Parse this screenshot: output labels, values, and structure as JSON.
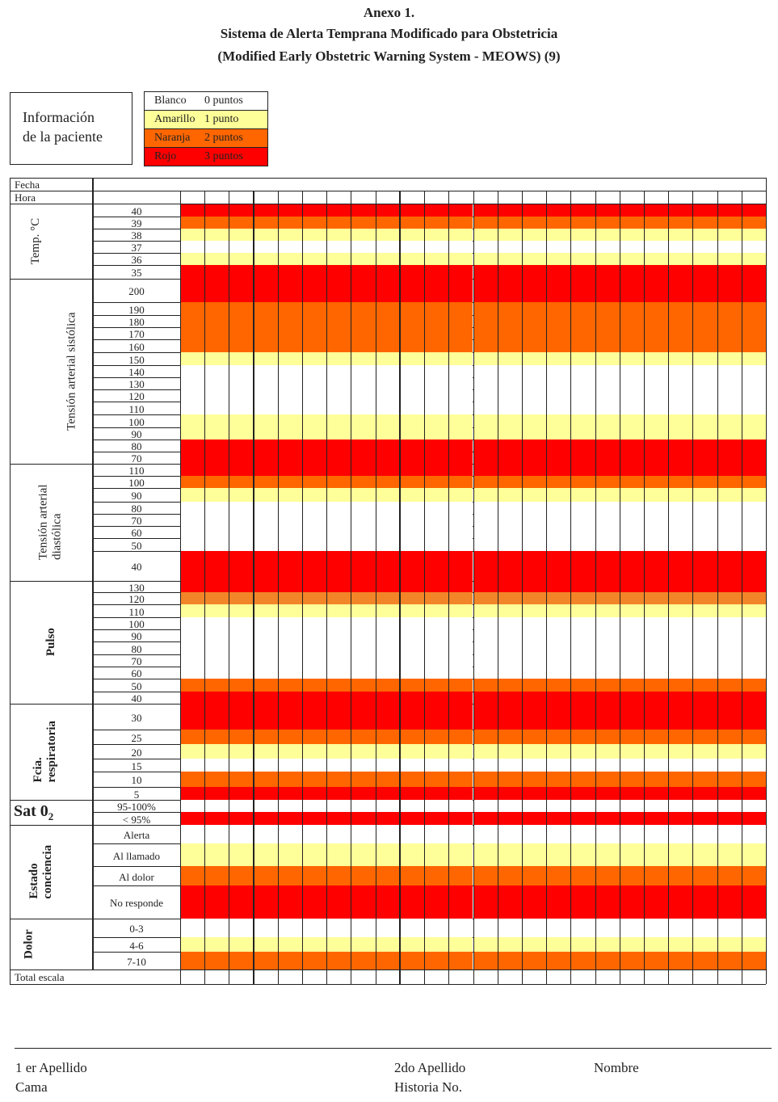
{
  "title": {
    "line1": "Anexo 1.",
    "line2": "Sistema de Alerta Temprana Modificado para Obstetricia",
    "line3": "(Modified Early Obstetric Warning System - MEOWS) (9)"
  },
  "patient_info": {
    "line1": "Información",
    "line2": "de la paciente"
  },
  "colors": {
    "white": "#FFFFFF",
    "yellow": "#FFFF99",
    "orange": "#FF6600",
    "orange_light": "#F28527",
    "red": "#FF0000"
  },
  "legend": [
    {
      "name": "Blanco",
      "points": "0 puntos",
      "color": "white"
    },
    {
      "name": "Amarillo",
      "points": "1 punto",
      "color": "yellow"
    },
    {
      "name": "Naranja",
      "points": "2 puntos",
      "color": "orange"
    },
    {
      "name": "Rojo",
      "points": "3 puntos",
      "color": "red"
    }
  ],
  "header_rows": {
    "fecha": "Fecha",
    "hora": "Hora"
  },
  "time_columns": 24,
  "sections": [
    {
      "id": "temp",
      "label": "Temp. °C",
      "bold": false,
      "rows": [
        {
          "value": "40",
          "color": "red"
        },
        {
          "value": "39",
          "color": "orange"
        },
        {
          "value": "38",
          "color": "yellow"
        },
        {
          "value": "37",
          "color": "white"
        },
        {
          "value": "36",
          "color": "yellow"
        },
        {
          "value": "35",
          "color": "red"
        }
      ]
    },
    {
      "id": "systolic",
      "label": "Tensión arterial sistólica",
      "bold": false,
      "rows": [
        {
          "value": "200",
          "color": "red"
        },
        {
          "value": "190",
          "color": "orange"
        },
        {
          "value": "180",
          "color": "orange"
        },
        {
          "value": "170",
          "color": "orange"
        },
        {
          "value": "160",
          "color": "orange"
        },
        {
          "value": "150",
          "color": "yellow"
        },
        {
          "value": "140",
          "color": "white"
        },
        {
          "value": "130",
          "color": "white"
        },
        {
          "value": "120",
          "color": "white"
        },
        {
          "value": "110",
          "color": "white"
        },
        {
          "value": "100",
          "color": "yellow"
        },
        {
          "value": "90",
          "color": "yellow"
        },
        {
          "value": "80",
          "color": "red"
        },
        {
          "value": "70",
          "color": "red"
        }
      ]
    },
    {
      "id": "diastolic",
      "label": "Tensión arterial|diastólica",
      "bold": false,
      "rows": [
        {
          "value": "110",
          "color": "red"
        },
        {
          "value": "100",
          "color": "orange"
        },
        {
          "value": "90",
          "color": "yellow"
        },
        {
          "value": "80",
          "color": "white"
        },
        {
          "value": "70",
          "color": "white"
        },
        {
          "value": "60",
          "color": "white"
        },
        {
          "value": "50",
          "color": "white"
        },
        {
          "value": "40",
          "color": "red"
        }
      ]
    },
    {
      "id": "pulse",
      "label": "Pulso",
      "bold": true,
      "rows": [
        {
          "value": "130",
          "color": "red"
        },
        {
          "value": "120",
          "color": "orange_light"
        },
        {
          "value": "110",
          "color": "yellow"
        },
        {
          "value": "100",
          "color": "white"
        },
        {
          "value": "90",
          "color": "white"
        },
        {
          "value": "80",
          "color": "white"
        },
        {
          "value": "70",
          "color": "white"
        },
        {
          "value": "60",
          "color": "white"
        },
        {
          "value": "50",
          "color": "orange"
        },
        {
          "value": "40",
          "color": "red"
        }
      ]
    },
    {
      "id": "resp",
      "label": "Fcia.|respiratoria",
      "bold": true,
      "rows": [
        {
          "value": "30",
          "color": "red"
        },
        {
          "value": "25",
          "color": "orange"
        },
        {
          "value": "20",
          "color": "yellow"
        },
        {
          "value": "15",
          "color": "white"
        },
        {
          "value": "10",
          "color": "orange"
        },
        {
          "value": "5",
          "color": "red"
        }
      ]
    },
    {
      "id": "sat",
      "label": "Sat 0",
      "label_sub": "2",
      "bold": true,
      "rows": [
        {
          "value": "95-100%",
          "color": "white"
        },
        {
          "value": "< 95%",
          "color": "red"
        }
      ]
    },
    {
      "id": "conscious",
      "label": "Estado|conciencia",
      "bold": true,
      "rows": [
        {
          "value": "Alerta",
          "color": "white"
        },
        {
          "value": "Al llamado",
          "color": "yellow"
        },
        {
          "value": "Al dolor",
          "color": "orange"
        },
        {
          "value": "No responde",
          "color": "red"
        }
      ]
    },
    {
      "id": "pain",
      "label": "Dolor",
      "bold": true,
      "rows": [
        {
          "value": "0-3",
          "color": "white"
        },
        {
          "value": "4-6",
          "color": "yellow"
        },
        {
          "value": "7-10",
          "color": "orange"
        }
      ]
    }
  ],
  "total_label": "Total escala",
  "footer": {
    "first_surname": "1 er Apellido",
    "second_surname": "2do Apellido",
    "name": "Nombre",
    "bed": "Cama",
    "record": "Historia No."
  }
}
